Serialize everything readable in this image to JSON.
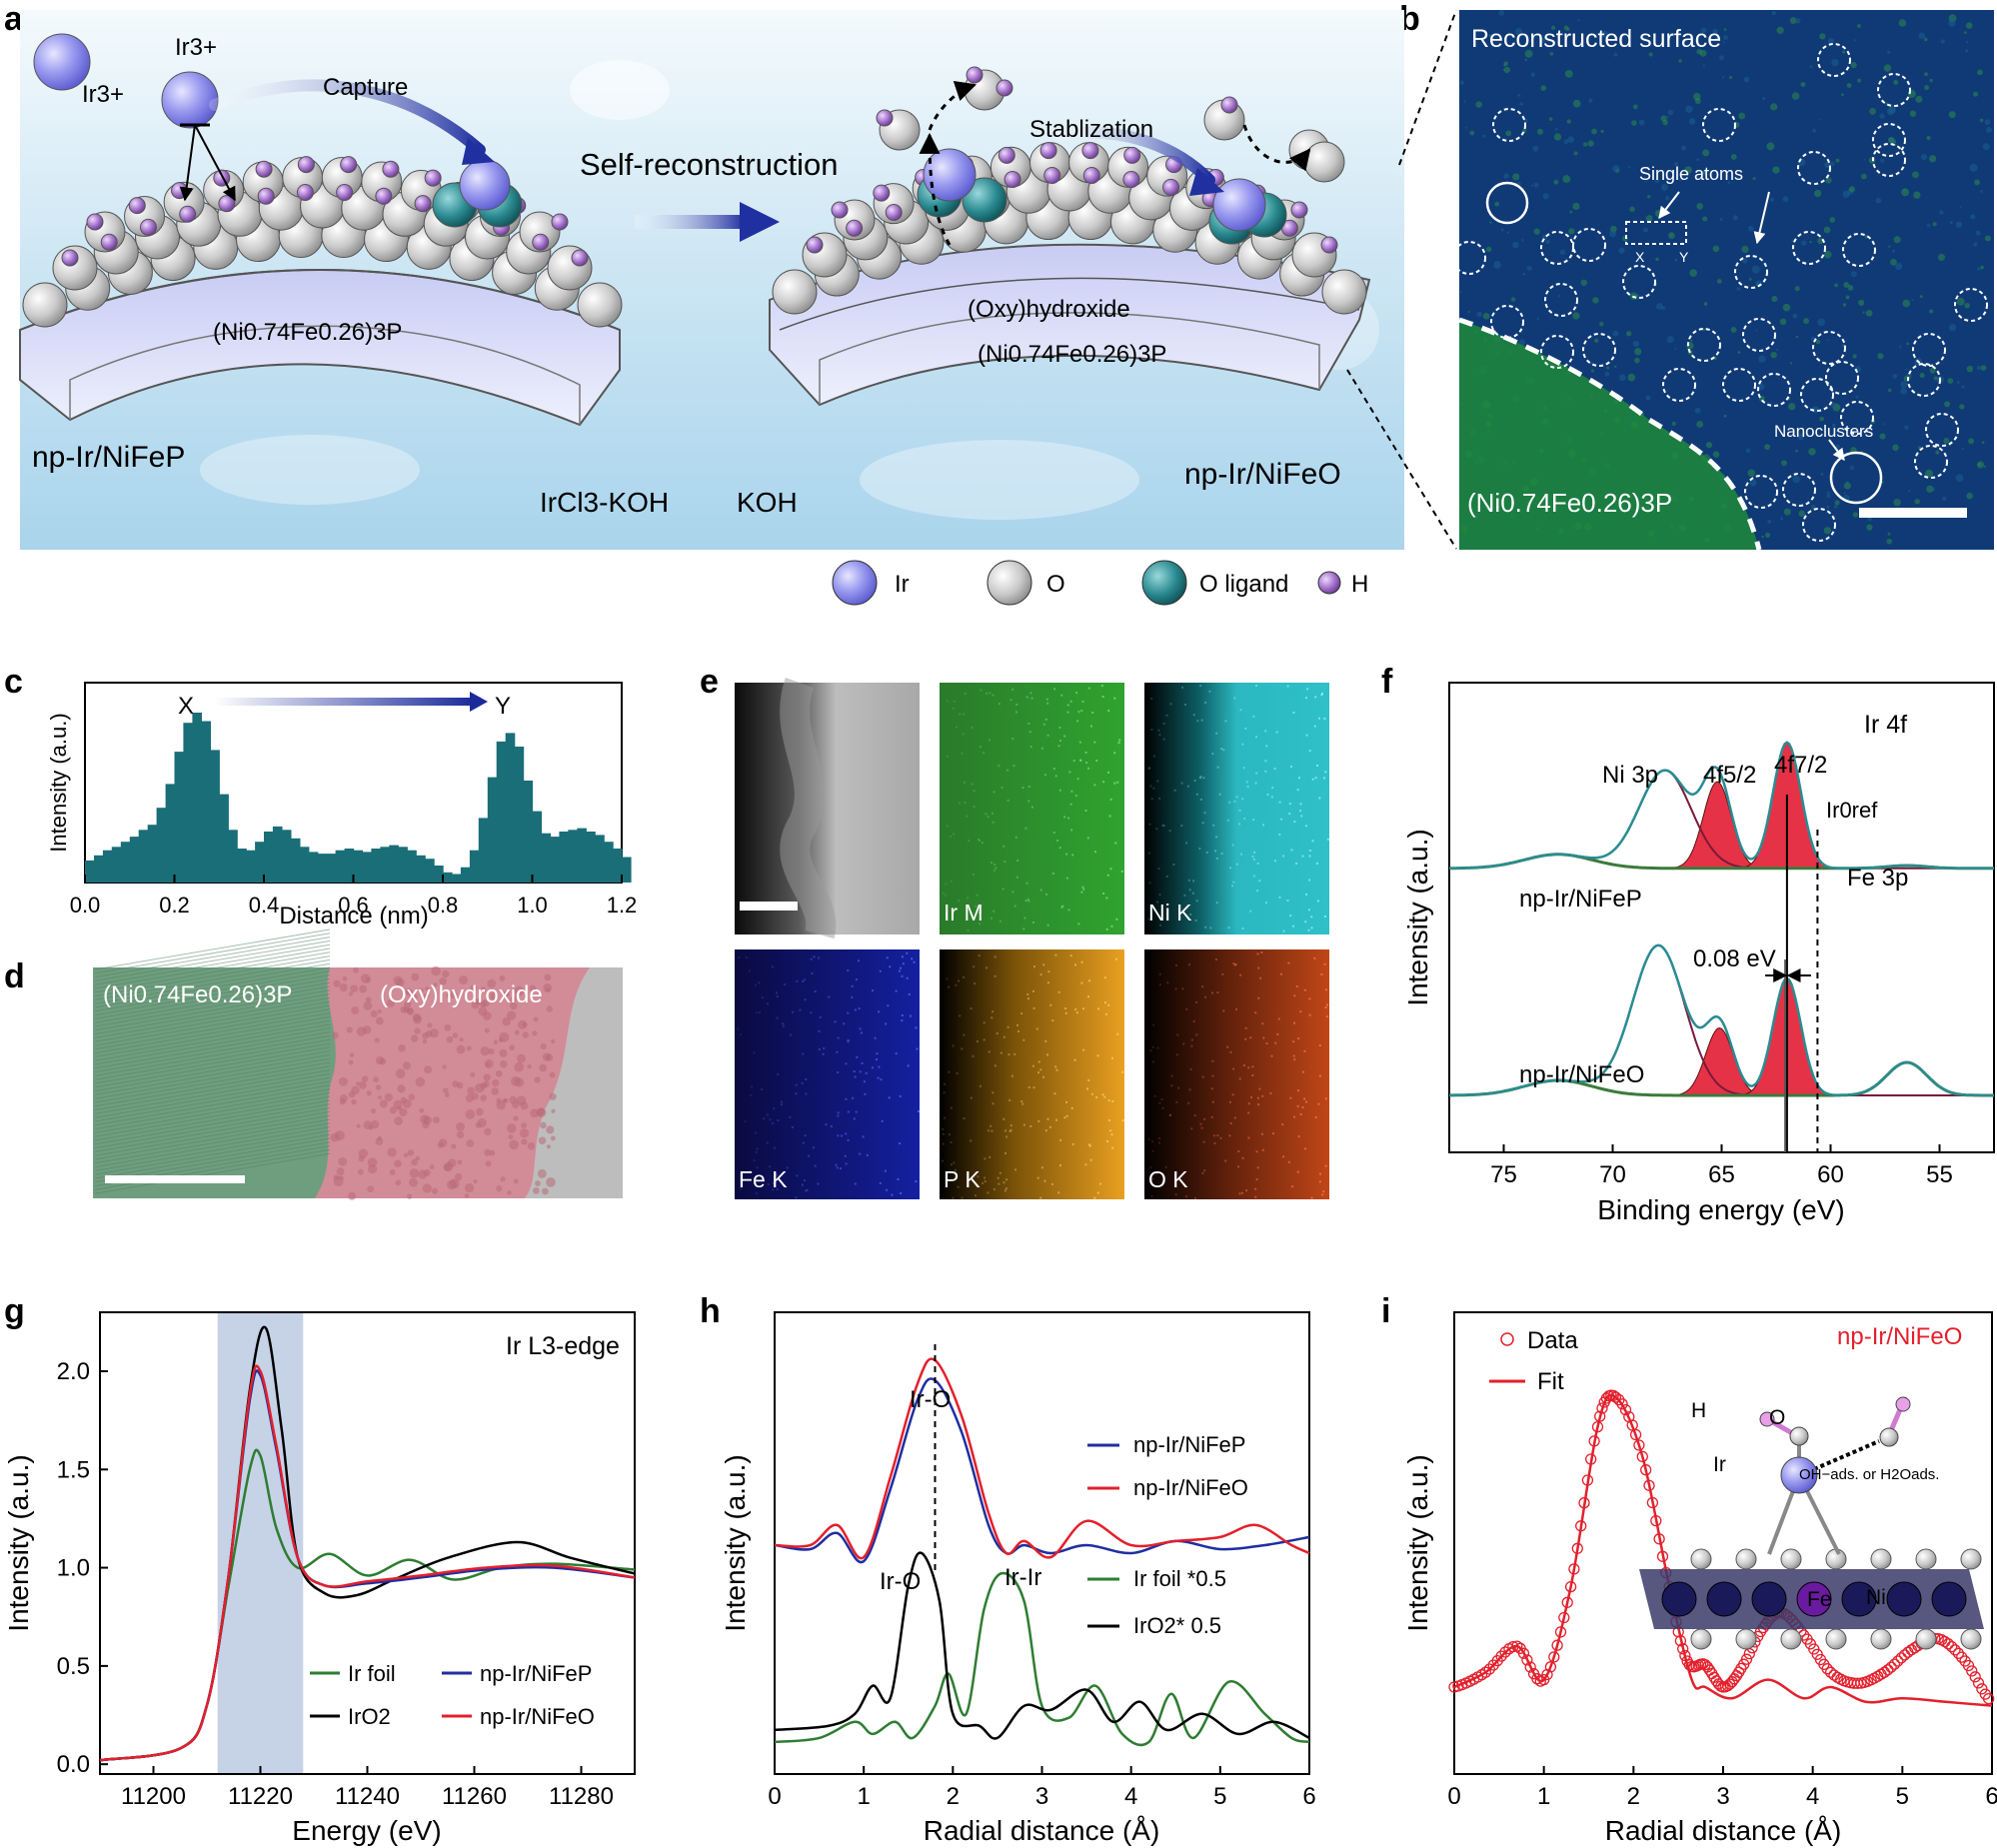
{
  "panel_letters": [
    "a",
    "b",
    "c",
    "d",
    "e",
    "f",
    "g",
    "h",
    "i"
  ],
  "colors": {
    "ir": "#8f8fe8",
    "o": "#c8c8c8",
    "oligand": "#1f7f86",
    "h": "#9a63b8",
    "teal": "#1a6e78",
    "xps_fill": "#e63246",
    "xps_env": "#2a8c92",
    "xps_bg": "#3c7a3c",
    "ir_foil": "#2e7d32",
    "iro2": "#000000",
    "nifep": "#1f2fa0",
    "nifeo": "#e3202c",
    "haadf": "#0d3a7a",
    "shade": "#c6d2e6"
  },
  "panel_a": {
    "ir3_left": "Ir3+",
    "ir3_top": "Ir3+",
    "capture": "Capture",
    "self_recon": "Self-reconstruction",
    "stabilization": "Stablization",
    "left_layer": "(Ni0.74Fe0.26)3P",
    "oxy": "(Oxy)hydroxide",
    "right_layer": "(Ni0.74Fe0.26)3P",
    "np_left": "np-Ir/NiFeP",
    "ircl3": "IrCl3-KOH",
    "koh": "KOH",
    "np_right": "np-Ir/NiFeO",
    "legend": [
      "Ir",
      "O",
      "O ligand",
      "H"
    ]
  },
  "panel_b": {
    "title": "Reconstructed surface",
    "single_atoms": "Single atoms",
    "x": "X",
    "y": "Y",
    "nanoclusters": "Nanoclusters",
    "phase": "(Ni0.74Fe0.26)3P"
  },
  "chart_c": {
    "type": "bar",
    "x_start": 0.0,
    "bin_width": 0.02,
    "values": [
      0.13,
      0.16,
      0.19,
      0.21,
      0.24,
      0.27,
      0.31,
      0.34,
      0.44,
      0.58,
      0.77,
      0.94,
      1.0,
      0.95,
      0.78,
      0.52,
      0.31,
      0.2,
      0.19,
      0.24,
      0.3,
      0.33,
      0.31,
      0.26,
      0.21,
      0.18,
      0.17,
      0.17,
      0.19,
      0.2,
      0.19,
      0.18,
      0.2,
      0.21,
      0.22,
      0.21,
      0.19,
      0.16,
      0.14,
      0.1,
      0.06,
      0.05,
      0.09,
      0.19,
      0.38,
      0.62,
      0.83,
      0.88,
      0.8,
      0.6,
      0.42,
      0.29,
      0.27,
      0.3,
      0.31,
      0.32,
      0.3,
      0.28,
      0.24,
      0.2,
      0.15
    ],
    "xlim": [
      0.0,
      1.2
    ],
    "xticks": [
      "0.0",
      "0.2",
      "0.4",
      "0.6",
      "0.8",
      "1.0",
      "1.2"
    ],
    "xlabel": "Distance (nm)",
    "ylabel": "Intensity (a.u.)",
    "x_marker": "X",
    "y_marker": "Y"
  },
  "panel_d": {
    "left": "(Ni0.74Fe0.26)3P",
    "right": "(Oxy)hydroxide"
  },
  "panel_e": {
    "maps": [
      "",
      "Ir M",
      "Ni K",
      "Fe K",
      "P K",
      "O K"
    ]
  },
  "chart_f": {
    "type": "line",
    "title": "Ir 4f",
    "xlim": [
      77.5,
      52.5
    ],
    "xticks": [
      "75",
      "70",
      "65",
      "60",
      "55"
    ],
    "xlabel": "Binding energy (eV)",
    "ylabel": "Intensity (a.u.)",
    "labels": {
      "ni3p": "Ni 3p",
      "f52": "4f5/2",
      "f72": "4f7/2",
      "iref": "Ir0ref",
      "fe3p": "Fe 3p",
      "shift": "0.08 eV"
    },
    "series_names": [
      "np-Ir/NiFeP",
      "np-Ir/NiFeO"
    ],
    "peaks": {
      "nifep": {
        "ni": [
          67.6,
          0.7
        ],
        "f52": [
          65.2,
          0.62
        ],
        "f72": [
          62.0,
          0.9
        ]
      },
      "nifeo": {
        "ni": [
          67.9,
          1.0
        ],
        "f52": [
          65.1,
          0.45
        ],
        "f72": [
          62.0,
          0.78
        ]
      }
    }
  },
  "chart_g": {
    "type": "line",
    "title": "Ir L3-edge",
    "xlim": [
      11190,
      11290
    ],
    "ylim": [
      -0.05,
      2.3
    ],
    "xticks": [
      "11200",
      "11220",
      "11240",
      "11260",
      "11280"
    ],
    "yticks": [
      "0.0",
      "0.5",
      "1.0",
      "1.5",
      "2.0"
    ],
    "xlabel": "Energy (eV)",
    "ylabel": "Intensity (a.u.)",
    "shade_range": [
      11212,
      11228
    ],
    "series": [
      {
        "name": "Ir foil",
        "color": "#2e7d32",
        "points": [
          [
            11190,
            0.02
          ],
          [
            11205,
            0.08
          ],
          [
            11210,
            0.3
          ],
          [
            11214,
            0.9
          ],
          [
            11218,
            1.5
          ],
          [
            11220,
            1.57
          ],
          [
            11223,
            1.2
          ],
          [
            11227,
            1.0
          ],
          [
            11233,
            1.07
          ],
          [
            11240,
            0.96
          ],
          [
            11248,
            1.04
          ],
          [
            11256,
            0.94
          ],
          [
            11265,
            1.0
          ],
          [
            11275,
            1.02
          ],
          [
            11290,
            0.99
          ]
        ]
      },
      {
        "name": "IrO2",
        "color": "#000000",
        "points": [
          [
            11190,
            0.02
          ],
          [
            11205,
            0.08
          ],
          [
            11210,
            0.3
          ],
          [
            11214,
            0.95
          ],
          [
            11218,
            1.9
          ],
          [
            11221,
            2.22
          ],
          [
            11224,
            1.7
          ],
          [
            11227,
            1.05
          ],
          [
            11232,
            0.87
          ],
          [
            11238,
            0.86
          ],
          [
            11245,
            0.94
          ],
          [
            11255,
            1.05
          ],
          [
            11268,
            1.13
          ],
          [
            11278,
            1.05
          ],
          [
            11290,
            0.97
          ]
        ]
      },
      {
        "name": "np-Ir/NiFeP",
        "color": "#1f2fa0",
        "points": [
          [
            11190,
            0.02
          ],
          [
            11205,
            0.08
          ],
          [
            11210,
            0.3
          ],
          [
            11214,
            0.95
          ],
          [
            11218,
            1.85
          ],
          [
            11220,
            1.98
          ],
          [
            11223,
            1.6
          ],
          [
            11227,
            1.05
          ],
          [
            11232,
            0.91
          ],
          [
            11240,
            0.92
          ],
          [
            11250,
            0.95
          ],
          [
            11262,
            0.99
          ],
          [
            11275,
            1.0
          ],
          [
            11290,
            0.95
          ]
        ]
      },
      {
        "name": "np-Ir/NiFeO",
        "color": "#e3202c",
        "points": [
          [
            11190,
            0.02
          ],
          [
            11205,
            0.08
          ],
          [
            11210,
            0.3
          ],
          [
            11214,
            0.95
          ],
          [
            11218,
            1.88
          ],
          [
            11220,
            2.0
          ],
          [
            11223,
            1.62
          ],
          [
            11227,
            1.05
          ],
          [
            11232,
            0.91
          ],
          [
            11240,
            0.93
          ],
          [
            11250,
            0.96
          ],
          [
            11262,
            1.0
          ],
          [
            11275,
            1.01
          ],
          [
            11290,
            0.95
          ]
        ]
      }
    ]
  },
  "chart_h": {
    "type": "line",
    "xlim": [
      0,
      6
    ],
    "xticks": [
      "0",
      "1",
      "2",
      "3",
      "4",
      "5",
      "6"
    ],
    "xlabel": "Radial distance (Å)",
    "ylabel": "Intensity (a.u.)",
    "labels": {
      "iro_top": "Ir-O",
      "iro_low": "Ir-O",
      "irir": "Ir-Ir"
    },
    "series": [
      {
        "name": "np-Ir/NiFeP",
        "color": "#1f2fa0",
        "points": [
          [
            0,
            0.52
          ],
          [
            0.4,
            0.51
          ],
          [
            0.7,
            0.55
          ],
          [
            1.0,
            0.48
          ],
          [
            1.3,
            0.66
          ],
          [
            1.6,
            0.88
          ],
          [
            1.8,
            0.93
          ],
          [
            2.1,
            0.8
          ],
          [
            2.4,
            0.57
          ],
          [
            2.6,
            0.5
          ],
          [
            2.8,
            0.52
          ],
          [
            3.1,
            0.5
          ],
          [
            3.5,
            0.52
          ],
          [
            4.0,
            0.5
          ],
          [
            4.5,
            0.53
          ],
          [
            5.0,
            0.51
          ],
          [
            5.5,
            0.52
          ],
          [
            6.0,
            0.54
          ]
        ]
      },
      {
        "name": "np-Ir/NiFeO",
        "color": "#e3202c",
        "points": [
          [
            0,
            0.52
          ],
          [
            0.4,
            0.52
          ],
          [
            0.7,
            0.57
          ],
          [
            1.0,
            0.49
          ],
          [
            1.3,
            0.69
          ],
          [
            1.6,
            0.92
          ],
          [
            1.8,
            0.98
          ],
          [
            2.1,
            0.84
          ],
          [
            2.4,
            0.6
          ],
          [
            2.6,
            0.5
          ],
          [
            2.8,
            0.53
          ],
          [
            3.1,
            0.49
          ],
          [
            3.5,
            0.58
          ],
          [
            4.0,
            0.52
          ],
          [
            4.5,
            0.53
          ],
          [
            5.0,
            0.54
          ],
          [
            5.4,
            0.57
          ],
          [
            5.8,
            0.52
          ],
          [
            6.0,
            0.5
          ]
        ]
      },
      {
        "name": "Ir foil *0.5",
        "color": "#2e7d32",
        "points": [
          [
            0,
            0.03
          ],
          [
            0.5,
            0.04
          ],
          [
            0.9,
            0.08
          ],
          [
            1.1,
            0.05
          ],
          [
            1.35,
            0.08
          ],
          [
            1.55,
            0.04
          ],
          [
            1.8,
            0.12
          ],
          [
            1.95,
            0.2
          ],
          [
            2.15,
            0.1
          ],
          [
            2.35,
            0.36
          ],
          [
            2.55,
            0.45
          ],
          [
            2.8,
            0.38
          ],
          [
            3.0,
            0.12
          ],
          [
            3.3,
            0.09
          ],
          [
            3.6,
            0.17
          ],
          [
            3.9,
            0.05
          ],
          [
            4.2,
            0.03
          ],
          [
            4.45,
            0.15
          ],
          [
            4.7,
            0.04
          ],
          [
            5.1,
            0.18
          ],
          [
            5.5,
            0.1
          ],
          [
            5.8,
            0.04
          ],
          [
            6.0,
            0.03
          ]
        ]
      },
      {
        "name": "IrO2* 0.5",
        "color": "#000000",
        "points": [
          [
            0,
            0.06
          ],
          [
            0.6,
            0.07
          ],
          [
            0.9,
            0.1
          ],
          [
            1.1,
            0.17
          ],
          [
            1.3,
            0.14
          ],
          [
            1.5,
            0.42
          ],
          [
            1.65,
            0.5
          ],
          [
            1.85,
            0.38
          ],
          [
            2.0,
            0.1
          ],
          [
            2.3,
            0.07
          ],
          [
            2.5,
            0.04
          ],
          [
            2.8,
            0.12
          ],
          [
            3.1,
            0.11
          ],
          [
            3.5,
            0.16
          ],
          [
            3.8,
            0.08
          ],
          [
            4.1,
            0.13
          ],
          [
            4.4,
            0.06
          ],
          [
            4.8,
            0.1
          ],
          [
            5.2,
            0.05
          ],
          [
            5.6,
            0.08
          ],
          [
            6.0,
            0.04
          ]
        ]
      }
    ]
  },
  "chart_i": {
    "type": "scatter",
    "title": "np-Ir/NiFeO",
    "xlim": [
      0,
      6
    ],
    "xticks": [
      "0",
      "1",
      "2",
      "3",
      "4",
      "5",
      "6"
    ],
    "xlabel": "Radial distance (Å)",
    "ylabel": "Intensity (a.u.)",
    "legend": [
      "Data",
      "Fit"
    ],
    "inset_labels": [
      "H",
      "O",
      "Ir",
      "OH−ads. or H2Oads.",
      "Fe",
      "Ni"
    ],
    "fit": [
      [
        0,
        0.18
      ],
      [
        0.35,
        0.22
      ],
      [
        0.7,
        0.29
      ],
      [
        1.0,
        0.2
      ],
      [
        1.3,
        0.45
      ],
      [
        1.6,
        0.88
      ],
      [
        1.8,
        0.96
      ],
      [
        2.1,
        0.8
      ],
      [
        2.4,
        0.45
      ],
      [
        2.65,
        0.2
      ],
      [
        2.8,
        0.18
      ],
      [
        3.1,
        0.15
      ],
      [
        3.5,
        0.2
      ],
      [
        3.9,
        0.15
      ],
      [
        4.2,
        0.18
      ],
      [
        4.6,
        0.14
      ],
      [
        5.0,
        0.15
      ],
      [
        5.5,
        0.14
      ],
      [
        6.0,
        0.13
      ]
    ],
    "data": [
      [
        0,
        0.18
      ],
      [
        0.35,
        0.22
      ],
      [
        0.7,
        0.29
      ],
      [
        1.0,
        0.2
      ],
      [
        1.3,
        0.45
      ],
      [
        1.6,
        0.88
      ],
      [
        1.8,
        0.96
      ],
      [
        2.1,
        0.8
      ],
      [
        2.4,
        0.45
      ],
      [
        2.6,
        0.25
      ],
      [
        2.8,
        0.24
      ],
      [
        3.0,
        0.18
      ],
      [
        3.2,
        0.23
      ],
      [
        3.45,
        0.34
      ],
      [
        3.65,
        0.38
      ],
      [
        3.9,
        0.32
      ],
      [
        4.2,
        0.22
      ],
      [
        4.5,
        0.19
      ],
      [
        4.8,
        0.22
      ],
      [
        5.1,
        0.28
      ],
      [
        5.4,
        0.31
      ],
      [
        5.7,
        0.25
      ],
      [
        6.0,
        0.14
      ]
    ]
  }
}
